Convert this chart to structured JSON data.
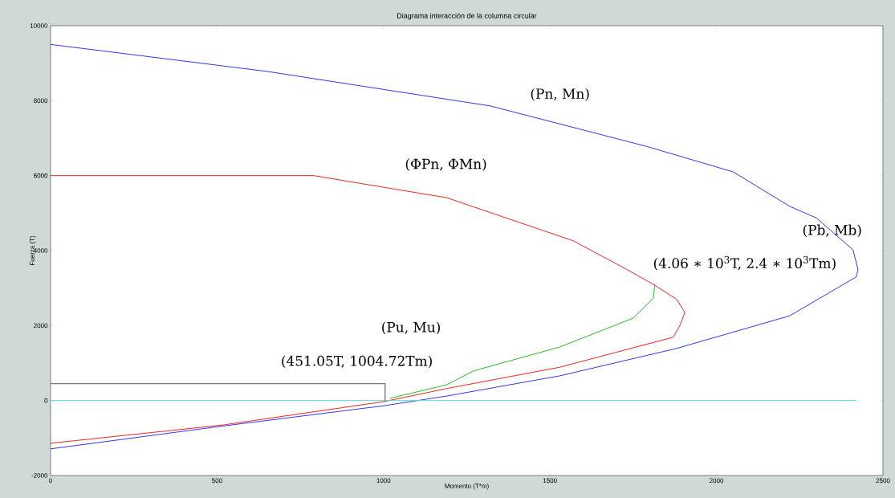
{
  "chart_data": {
    "type": "line",
    "title": "Diagrama interacción de la columna circular",
    "xlabel": "Momento (T*m)",
    "ylabel": "Fuerza (T)",
    "xlim": [
      0,
      2500
    ],
    "ylim": [
      -2000,
      10000
    ],
    "xticks": [
      0,
      500,
      1000,
      1500,
      2000,
      2500
    ],
    "yticks": [
      -2000,
      0,
      2000,
      4000,
      6000,
      8000,
      10000
    ],
    "grid": false,
    "series": [
      {
        "color": "#3333ee",
        "x": [
          0,
          650,
          1320,
          1790,
          2050,
          2220,
          2300,
          2410,
          2425,
          2420,
          2220,
          1880,
          1530,
          1190,
          1000,
          500,
          0
        ],
        "values": [
          9500,
          8780,
          7860,
          6780,
          6100,
          5180,
          4870,
          4020,
          3500,
          3300,
          2260,
          1390,
          660,
          120,
          -140,
          -700,
          -1290
        ]
      },
      {
        "color": "#ee2222",
        "x": [
          0,
          790,
          1190,
          1570,
          1730,
          1810,
          1880,
          1905,
          1890,
          1870,
          1530,
          1190,
          1000,
          520,
          0
        ],
        "values": [
          6000,
          6000,
          5410,
          4260,
          3500,
          3100,
          2700,
          2350,
          2000,
          1690,
          890,
          320,
          -30,
          -650,
          -1140
        ]
      },
      {
        "color": "#22bb22",
        "x": [
          1020,
          1190,
          1270,
          1530,
          1750,
          1810,
          1815
        ],
        "values": [
          60,
          420,
          790,
          1430,
          2200,
          2730,
          3100
        ]
      },
      {
        "color": "#55dddd",
        "x": [
          0,
          2420
        ],
        "values": [
          0,
          0
        ]
      },
      {
        "color": "#777777",
        "x": [
          0,
          1004.72,
          1004.72
        ],
        "values": [
          451.05,
          451.05,
          0
        ]
      }
    ],
    "annotations": [
      "(Pn, Mn)",
      "(ΦPn, ΦMn)",
      "(Pb, Mb)",
      "(4.06 ∗ 10$^{3}$T, 2.4 ∗ 10$^{3}$Tm)",
      "(Pu, Mu)",
      "(451.05T, 1004.72Tm)"
    ]
  }
}
